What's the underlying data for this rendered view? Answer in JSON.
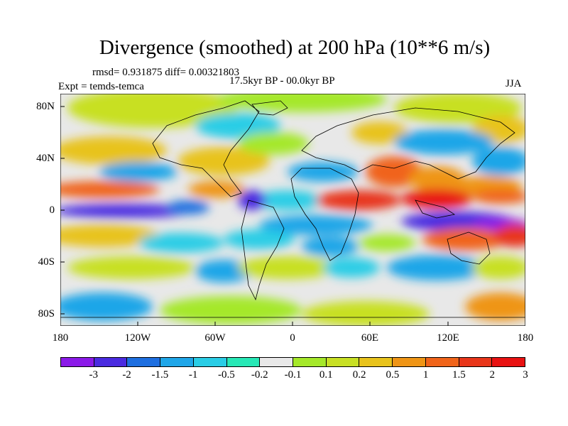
{
  "title": "Divergence (smoothed) at 200 hPa (10**6 m/s)",
  "rmsd_text": "rmsd= 0.931875 diff= 0.00321803",
  "period_text": "17.5kyr BP - 00.0kyr BP",
  "expt_text": "Expt = temds-temca",
  "season": "JJA",
  "y_axis": [
    "80N",
    "40N",
    "0",
    "40S",
    "80S"
  ],
  "x_axis": [
    "180",
    "120W",
    "60W",
    "0",
    "60E",
    "120E",
    "180"
  ],
  "colorbar": {
    "colors": [
      "#8b1ae8",
      "#4a2be0",
      "#1e6fe0",
      "#1fa6e8",
      "#2acde6",
      "#27e8b6",
      "#e8e8e8",
      "#a5e82a",
      "#c8e024",
      "#e8c31c",
      "#ef9516",
      "#f0641a",
      "#e8361a",
      "#e81212"
    ],
    "labels": [
      "-3",
      "-2",
      "-1.5",
      "-1",
      "-0.5",
      "-0.2",
      "-0.1",
      "0.1",
      "0.2",
      "0.5",
      "1",
      "1.5",
      "2",
      "3"
    ]
  }
}
